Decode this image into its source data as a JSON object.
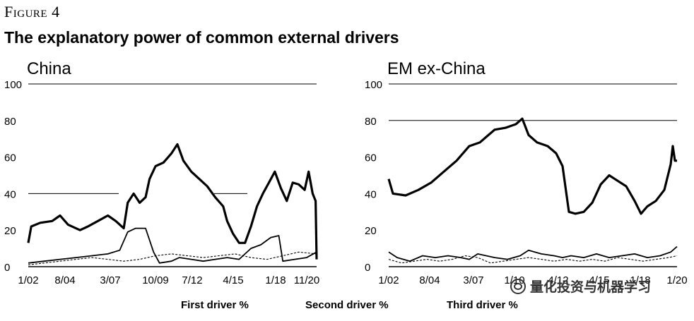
{
  "figure": {
    "label": "Figure 4",
    "title": "The explanatory power of common external drivers"
  },
  "legend": [
    "First driver %",
    "Second driver %",
    "Third driver %"
  ],
  "watermark": "量化投资与机器学习",
  "chart_data": [
    {
      "type": "line",
      "title": "China",
      "x_tick_labels": [
        "1/02",
        "8/04",
        "3/07",
        "10/09",
        "7/12",
        "4/15",
        "1/18",
        "11/20"
      ],
      "y_ticks": [
        0,
        20,
        40,
        60,
        80,
        100
      ],
      "ylim": [
        0,
        100
      ],
      "grid": "partial horizontal reference lines",
      "series": [
        {
          "name": "First driver %",
          "points": [
            [
              0,
              13
            ],
            [
              0.15,
              22
            ],
            [
              0.6,
              24
            ],
            [
              1.2,
              25
            ],
            [
              1.6,
              28
            ],
            [
              2.0,
              23
            ],
            [
              2.6,
              20
            ],
            [
              3.0,
              22
            ],
            [
              3.5,
              25
            ],
            [
              4.0,
              28
            ],
            [
              4.4,
              25
            ],
            [
              4.8,
              21
            ],
            [
              5.0,
              35
            ],
            [
              5.3,
              40
            ],
            [
              5.6,
              35
            ],
            [
              5.9,
              38
            ],
            [
              6.1,
              48
            ],
            [
              6.4,
              55
            ],
            [
              6.8,
              57
            ],
            [
              7.2,
              62
            ],
            [
              7.5,
              67
            ],
            [
              7.8,
              58
            ],
            [
              8.2,
              52
            ],
            [
              8.6,
              48
            ],
            [
              9.0,
              44
            ],
            [
              9.4,
              38
            ],
            [
              9.8,
              33
            ],
            [
              10.0,
              25
            ],
            [
              10.3,
              18
            ],
            [
              10.6,
              13
            ],
            [
              10.9,
              13
            ],
            [
              11.2,
              22
            ],
            [
              11.5,
              33
            ],
            [
              11.8,
              40
            ],
            [
              12.1,
              46
            ],
            [
              12.4,
              52
            ],
            [
              12.7,
              43
            ],
            [
              13.0,
              36
            ],
            [
              13.3,
              46
            ],
            [
              13.6,
              45
            ],
            [
              13.9,
              42
            ],
            [
              14.1,
              52
            ],
            [
              14.3,
              40
            ],
            [
              14.45,
              36
            ],
            [
              14.5,
              4
            ]
          ]
        },
        {
          "name": "Second driver %",
          "points": [
            [
              0,
              2
            ],
            [
              0.8,
              3
            ],
            [
              1.6,
              4
            ],
            [
              2.4,
              5
            ],
            [
              3.2,
              6
            ],
            [
              4.0,
              7
            ],
            [
              4.6,
              9
            ],
            [
              5.0,
              19
            ],
            [
              5.4,
              21
            ],
            [
              5.9,
              21
            ],
            [
              6.3,
              8
            ],
            [
              6.6,
              2
            ],
            [
              7.2,
              3
            ],
            [
              7.6,
              5
            ],
            [
              8.2,
              4
            ],
            [
              8.8,
              3
            ],
            [
              9.4,
              4
            ],
            [
              10.0,
              5
            ],
            [
              10.6,
              4
            ],
            [
              11.2,
              10
            ],
            [
              11.7,
              12
            ],
            [
              12.2,
              16
            ],
            [
              12.6,
              17
            ],
            [
              12.8,
              3
            ],
            [
              13.4,
              4
            ],
            [
              14.0,
              5
            ],
            [
              14.5,
              8
            ]
          ]
        },
        {
          "name": "Third driver %",
          "points": [
            [
              0,
              1
            ],
            [
              0.8,
              2
            ],
            [
              1.6,
              3
            ],
            [
              2.4,
              4
            ],
            [
              3.2,
              5
            ],
            [
              4.0,
              4
            ],
            [
              4.8,
              3
            ],
            [
              5.6,
              4
            ],
            [
              6.4,
              6
            ],
            [
              7.2,
              7
            ],
            [
              8.0,
              6
            ],
            [
              8.8,
              5
            ],
            [
              9.6,
              6
            ],
            [
              10.4,
              7
            ],
            [
              11.2,
              5
            ],
            [
              12.0,
              4
            ],
            [
              12.8,
              6
            ],
            [
              13.6,
              8
            ],
            [
              14.5,
              7
            ]
          ]
        }
      ]
    },
    {
      "type": "line",
      "title": "EM ex-China",
      "x_tick_labels": [
        "1/02",
        "8/04",
        "3/07",
        "1/10",
        "4/12",
        "4/15",
        "1/18",
        "1/20"
      ],
      "y_ticks": [
        0,
        20,
        40,
        60,
        80,
        100
      ],
      "ylim": [
        0,
        100
      ],
      "grid": "partial horizontal reference lines",
      "series": [
        {
          "name": "First driver %",
          "points": [
            [
              0,
              48
            ],
            [
              0.2,
              40
            ],
            [
              0.8,
              39
            ],
            [
              1.4,
              42
            ],
            [
              2.0,
              46
            ],
            [
              2.6,
              52
            ],
            [
              3.2,
              58
            ],
            [
              3.8,
              66
            ],
            [
              4.3,
              68
            ],
            [
              4.7,
              72
            ],
            [
              5.0,
              75
            ],
            [
              5.5,
              76
            ],
            [
              6.0,
              78
            ],
            [
              6.3,
              81
            ],
            [
              6.6,
              72
            ],
            [
              7.0,
              68
            ],
            [
              7.5,
              66
            ],
            [
              7.9,
              62
            ],
            [
              8.2,
              55
            ],
            [
              8.5,
              30
            ],
            [
              8.8,
              29
            ],
            [
              9.2,
              30
            ],
            [
              9.6,
              35
            ],
            [
              10.0,
              45
            ],
            [
              10.4,
              50
            ],
            [
              10.8,
              47
            ],
            [
              11.2,
              44
            ],
            [
              11.6,
              36
            ],
            [
              11.9,
              29
            ],
            [
              12.2,
              33
            ],
            [
              12.6,
              36
            ],
            [
              13.0,
              42
            ],
            [
              13.3,
              56
            ],
            [
              13.4,
              66
            ],
            [
              13.5,
              58
            ],
            [
              13.6,
              58
            ]
          ]
        },
        {
          "name": "Second driver %",
          "points": [
            [
              0,
              8
            ],
            [
              0.4,
              5
            ],
            [
              1.0,
              3
            ],
            [
              1.6,
              6
            ],
            [
              2.2,
              5
            ],
            [
              2.8,
              6
            ],
            [
              3.4,
              5
            ],
            [
              3.8,
              4
            ],
            [
              4.2,
              7
            ],
            [
              4.6,
              6
            ],
            [
              5.0,
              5
            ],
            [
              5.6,
              4
            ],
            [
              6.2,
              6
            ],
            [
              6.6,
              9
            ],
            [
              7.2,
              7
            ],
            [
              7.8,
              6
            ],
            [
              8.2,
              5
            ],
            [
              8.6,
              6
            ],
            [
              9.2,
              5
            ],
            [
              9.8,
              7
            ],
            [
              10.4,
              5
            ],
            [
              11.0,
              6
            ],
            [
              11.6,
              7
            ],
            [
              12.2,
              5
            ],
            [
              12.8,
              6
            ],
            [
              13.3,
              8
            ],
            [
              13.6,
              11
            ]
          ]
        },
        {
          "name": "Third driver %",
          "points": [
            [
              0,
              4
            ],
            [
              0.6,
              2
            ],
            [
              1.2,
              3
            ],
            [
              1.8,
              4
            ],
            [
              2.4,
              3
            ],
            [
              3.0,
              4
            ],
            [
              3.6,
              6
            ],
            [
              4.2,
              5
            ],
            [
              4.8,
              2
            ],
            [
              5.4,
              3
            ],
            [
              6.0,
              4
            ],
            [
              6.6,
              5
            ],
            [
              7.2,
              4
            ],
            [
              7.8,
              3
            ],
            [
              8.4,
              4
            ],
            [
              9.0,
              3
            ],
            [
              9.6,
              4
            ],
            [
              10.2,
              3
            ],
            [
              10.8,
              5
            ],
            [
              11.4,
              4
            ],
            [
              12.0,
              3
            ],
            [
              12.6,
              4
            ],
            [
              13.2,
              5
            ],
            [
              13.6,
              6
            ]
          ]
        }
      ]
    }
  ]
}
